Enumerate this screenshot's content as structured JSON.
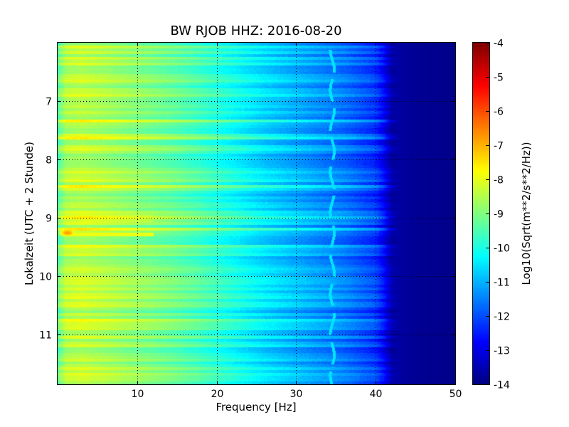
{
  "chart_data": {
    "type": "heatmap",
    "title": "BW RJOB HHZ: 2016-08-20",
    "xlabel": "Frequency [Hz]",
    "ylabel": "Lokalzeit (UTC + 2 Stunde)",
    "colorbar_label": "Log10(Sqrt(m**2/s**2/Hz))",
    "xlim": [
      0,
      50
    ],
    "ylim": [
      11.85,
      6.0
    ],
    "x_ticks": [
      "10",
      "20",
      "30",
      "40",
      "50"
    ],
    "y_ticks": [
      "7",
      "8",
      "9",
      "10",
      "11"
    ],
    "colorbar_range": [
      -14,
      -4
    ],
    "colorbar_ticks": [
      "-4",
      "-5",
      "-6",
      "-7",
      "-8",
      "-9",
      "-10",
      "-11",
      "-12",
      "-13",
      "-14"
    ],
    "colormap": "jet",
    "grid": true,
    "frequency_profile": {
      "frequency_hz": [
        0,
        1,
        3,
        6,
        10,
        14,
        18,
        22,
        26,
        30,
        33,
        36,
        38,
        40,
        41,
        42,
        45,
        50
      ],
      "log10_amplitude": [
        -9.3,
        -8.5,
        -8.4,
        -8.6,
        -8.9,
        -9.2,
        -9.6,
        -10.1,
        -10.6,
        -11.0,
        -11.3,
        -11.6,
        -11.9,
        -12.2,
        -12.8,
        -13.6,
        -13.8,
        -13.9
      ]
    },
    "annotations": [
      {
        "type": "hot-spot",
        "frequency_hz": 1.2,
        "time": 9.25,
        "log10_amplitude": -6.8
      },
      {
        "type": "narrow-band-line",
        "frequency_hz": 34.5,
        "log10_amplitude": -10.5
      }
    ]
  },
  "colors": {
    "background": "#ffffff",
    "frame": "#000000",
    "grid": "#000000"
  }
}
